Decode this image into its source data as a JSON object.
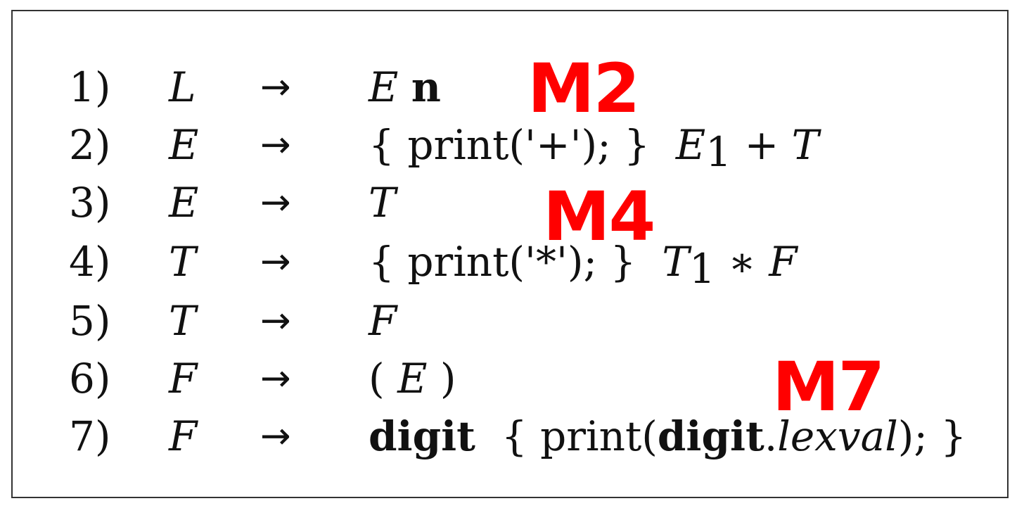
{
  "rules": [
    {
      "num": "1)",
      "head": "L",
      "arrow": "→",
      "body": [
        {
          "t": "E",
          "s": "it"
        },
        {
          "t": " "
        },
        {
          "t": "n",
          "s": "bf"
        }
      ]
    },
    {
      "num": "2)",
      "head": "E",
      "arrow": "→",
      "body": [
        {
          "t": "{ print('+'); }  "
        },
        {
          "t": "E",
          "s": "it"
        },
        {
          "t": "1",
          "s": "sub"
        },
        {
          "t": " + "
        },
        {
          "t": "T",
          "s": "it"
        }
      ]
    },
    {
      "num": "3)",
      "head": "E",
      "arrow": "→",
      "body": [
        {
          "t": "T",
          "s": "it"
        }
      ]
    },
    {
      "num": "4)",
      "head": "T",
      "arrow": "→",
      "body": [
        {
          "t": "{ print('*'); }  "
        },
        {
          "t": "T",
          "s": "it"
        },
        {
          "t": "1",
          "s": "sub"
        },
        {
          "t": " ∗ "
        },
        {
          "t": "F",
          "s": "it"
        }
      ]
    },
    {
      "num": "5)",
      "head": "T",
      "arrow": "→",
      "body": [
        {
          "t": "F",
          "s": "it"
        }
      ]
    },
    {
      "num": "6)",
      "head": "F",
      "arrow": "→",
      "body": [
        {
          "t": "( "
        },
        {
          "t": "E",
          "s": "it"
        },
        {
          "t": " )"
        }
      ]
    },
    {
      "num": "7)",
      "head": "F",
      "arrow": "→",
      "body": [
        {
          "t": "digit",
          "s": "bf"
        },
        {
          "t": "  { print("
        },
        {
          "t": "digit",
          "s": "bf"
        },
        {
          "t": "."
        },
        {
          "t": "lexval",
          "s": "it"
        },
        {
          "t": "); }"
        }
      ]
    }
  ],
  "markers": [
    "M2",
    "M4",
    "M7"
  ],
  "marker_color": "#ff0000"
}
